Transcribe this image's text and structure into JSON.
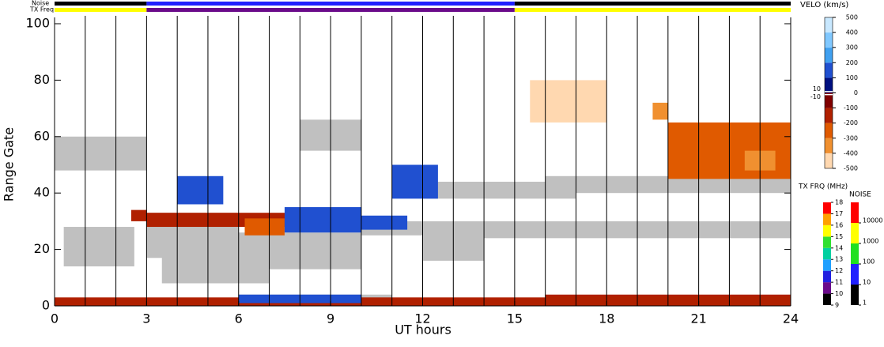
{
  "chart_data": {
    "type": "range-time",
    "xlabel": "UT hours",
    "ylabel": "Range Gate",
    "xlim": [
      0,
      24
    ],
    "xticks": [
      0,
      3,
      6,
      9,
      12,
      15,
      18,
      21,
      24
    ],
    "ylim": [
      0,
      100
    ],
    "yticks": [
      0,
      20,
      40,
      60,
      80,
      100
    ],
    "scan_marks": [
      1,
      2,
      3,
      4,
      5,
      6,
      7,
      8,
      9,
      10,
      11,
      12,
      13,
      14,
      15,
      16,
      17,
      18,
      19,
      20,
      21,
      22,
      23
    ],
    "ground_scatter_color": "#c0c0c0",
    "noise_label": "Noise",
    "txfreq_label": "TX Freq",
    "noise_segments": [
      {
        "x0": 0,
        "x1": 3,
        "value": 1
      },
      {
        "x0": 3,
        "x1": 15,
        "value": 20
      },
      {
        "x0": 15,
        "x1": 24,
        "value": 1
      }
    ],
    "txfreq_segments": [
      {
        "x0": 0,
        "x1": 3,
        "value": 15.5
      },
      {
        "x0": 3,
        "x1": 15,
        "value": 10.5
      },
      {
        "x0": 15,
        "x1": 24,
        "value": 15.5
      }
    ],
    "velo_title": "VELO (km/s)",
    "velo_lim": [
      -500,
      500
    ],
    "velo_ticks": [
      500,
      400,
      300,
      200,
      100,
      0,
      -100,
      -200,
      -300,
      -400,
      -500
    ],
    "velo_inner_ticks": [
      10,
      -10
    ],
    "velo_colors": [
      "#ffd8b0",
      "#f09030",
      "#e05a00",
      "#b02000",
      "#800000",
      "#001080",
      "#2050d0",
      "#40a0f0",
      "#80c8ff",
      "#c8e8ff"
    ],
    "txfreq_title": "TX FRQ (MHz)",
    "txfreq_lim": [
      9,
      18
    ],
    "txfreq_ticks": [
      9,
      10,
      11,
      12,
      13,
      14,
      15,
      16,
      17,
      18
    ],
    "txfreq_colors": [
      "#000000",
      "#6a0a8a",
      "#2020e0",
      "#20a0ff",
      "#00d0a0",
      "#30e030",
      "#ffff00",
      "#ffa000",
      "#ff0000"
    ],
    "noise_title": "NOISE",
    "noise_lim": [
      1,
      100000
    ],
    "noise_ticks": [
      1,
      10,
      100,
      1000,
      10000
    ],
    "noise_colors": [
      "#000000",
      "#2020ff",
      "#20e020",
      "#ffff00",
      "#ff0000"
    ],
    "ground_scatter": [
      {
        "x0": 0,
        "x1": 3,
        "y0": 48,
        "y1": 60
      },
      {
        "x0": 0.3,
        "x1": 2.6,
        "y0": 14,
        "y1": 28
      },
      {
        "x0": 3,
        "x1": 6,
        "y0": 17,
        "y1": 33
      },
      {
        "x0": 3.5,
        "x1": 7,
        "y0": 8,
        "y1": 22
      },
      {
        "x0": 6,
        "x1": 10,
        "y0": 13,
        "y1": 26
      },
      {
        "x0": 8,
        "x1": 10,
        "y0": 55,
        "y1": 66
      },
      {
        "x0": 10,
        "x1": 14,
        "y0": 25,
        "y1": 30
      },
      {
        "x0": 14,
        "x1": 24,
        "y0": 24,
        "y1": 30
      },
      {
        "x0": 12,
        "x1": 17,
        "y0": 38,
        "y1": 44
      },
      {
        "x0": 16,
        "x1": 24,
        "y0": 40,
        "y1": 46
      },
      {
        "x0": 21,
        "x1": 24,
        "y0": 48,
        "y1": 58
      },
      {
        "x0": 12,
        "x1": 14,
        "y0": 16,
        "y1": 26
      },
      {
        "x0": 6,
        "x1": 11,
        "y0": 1,
        "y1": 4
      }
    ],
    "velocity": [
      {
        "x0": 0,
        "x1": 24,
        "y0": 0,
        "y1": 3,
        "value": -150
      },
      {
        "x0": 6,
        "x1": 10,
        "y0": 1,
        "y1": 4,
        "value": 120
      },
      {
        "x0": 16,
        "x1": 24,
        "y0": 1,
        "y1": 4,
        "value": -150
      },
      {
        "x0": 3,
        "x1": 10,
        "y0": 28,
        "y1": 33,
        "value": -150
      },
      {
        "x0": 6.2,
        "x1": 7.5,
        "y0": 25,
        "y1": 31,
        "value": -250
      },
      {
        "x0": 7.5,
        "x1": 10,
        "y0": 26,
        "y1": 35,
        "value": 150
      },
      {
        "x0": 10,
        "x1": 11.5,
        "y0": 27,
        "y1": 32,
        "value": 180
      },
      {
        "x0": 4,
        "x1": 5.5,
        "y0": 36,
        "y1": 46,
        "value": 150
      },
      {
        "x0": 11,
        "x1": 12.5,
        "y0": 38,
        "y1": 50,
        "value": 150
      },
      {
        "x0": 20,
        "x1": 24,
        "y0": 45,
        "y1": 65,
        "value": -300
      },
      {
        "x0": 22.5,
        "x1": 23.5,
        "y0": 48,
        "y1": 55,
        "value": -400
      },
      {
        "x0": 15.5,
        "x1": 18,
        "y0": 65,
        "y1": 80,
        "value": -450
      },
      {
        "x0": 2.5,
        "x1": 3,
        "y0": 30,
        "y1": 34,
        "value": -150
      },
      {
        "x0": 19.5,
        "x1": 20,
        "y0": 66,
        "y1": 72,
        "value": -350
      }
    ]
  }
}
